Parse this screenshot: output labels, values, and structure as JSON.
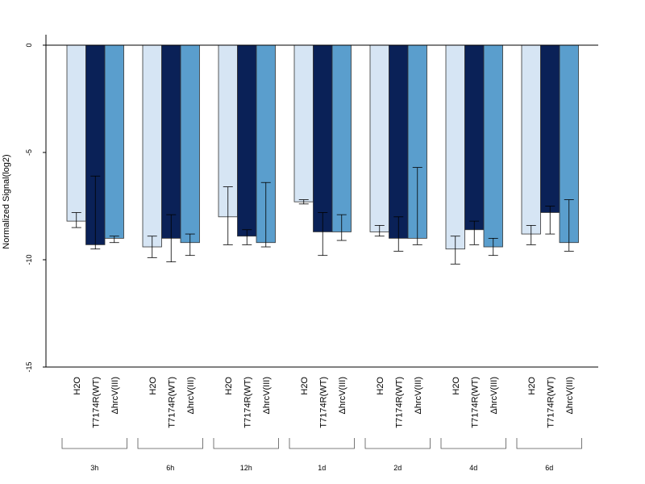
{
  "chart_data": {
    "type": "bar",
    "title": "",
    "xlabel": "",
    "ylabel": "Normalized Signal(log2)",
    "ylim": [
      -15,
      0.5
    ],
    "yticks": [
      0,
      -5,
      -10,
      -15
    ],
    "grid": false,
    "legend": "none",
    "categories": [
      "3h",
      "6h",
      "12h",
      "1d",
      "2d",
      "4d",
      "6d"
    ],
    "series": [
      {
        "name": "H2O",
        "color": "#d6e5f4",
        "values": [
          -8.2,
          -9.4,
          -8.0,
          -7.3,
          -8.7,
          -9.5,
          -8.8
        ],
        "err_low": [
          -8.5,
          -9.9,
          -9.3,
          -7.4,
          -8.9,
          -10.2,
          -9.3
        ],
        "err_high": [
          -7.8,
          -8.9,
          -6.6,
          -7.2,
          -8.4,
          -8.9,
          -8.4
        ]
      },
      {
        "name": "T7174R(WT)",
        "color": "#0a2157",
        "values": [
          -9.3,
          -9.0,
          -8.9,
          -8.7,
          -9.0,
          -8.6,
          -7.8
        ],
        "err_low": [
          -9.5,
          -10.1,
          -9.3,
          -9.8,
          -9.6,
          -9.3,
          -8.8
        ],
        "err_high": [
          -6.1,
          -7.9,
          -8.6,
          -7.8,
          -8.0,
          -8.2,
          -7.5
        ]
      },
      {
        "name": "ΔhrcV(III)",
        "color": "#5a9ecd",
        "values": [
          -9.0,
          -9.2,
          -9.2,
          -8.7,
          -9.0,
          -9.4,
          -9.2
        ],
        "err_low": [
          -9.2,
          -9.8,
          -9.4,
          -9.1,
          -9.3,
          -9.8,
          -9.6
        ],
        "err_high": [
          -8.9,
          -8.8,
          -6.4,
          -7.9,
          -5.7,
          -9.0,
          -7.2
        ]
      }
    ]
  }
}
